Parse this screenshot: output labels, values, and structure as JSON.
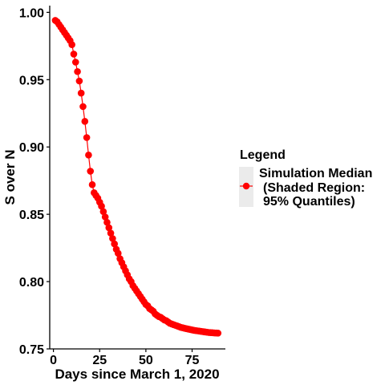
{
  "chart_data": {
    "type": "line",
    "xlabel": "Days since March 1, 2020",
    "ylabel": "S over N",
    "xlim": [
      -2,
      93
    ],
    "ylim": [
      0.75,
      1.005
    ],
    "xticks": [
      0,
      25,
      50,
      75
    ],
    "yticks": [
      0.75,
      0.8,
      0.85,
      0.9,
      0.95,
      1.0
    ],
    "xtick_labels": [
      "0",
      "25",
      "50",
      "75"
    ],
    "ytick_labels": [
      "0.75",
      "0.80",
      "0.85",
      "0.90",
      "0.95",
      "1.00"
    ],
    "grid": false,
    "legend": {
      "title": "Legend",
      "position": "right",
      "entries": [
        {
          "line1": "Simulation Median",
          "line2": "(Shaded Region:",
          "line3": "95% Quantiles)"
        }
      ]
    },
    "series": [
      {
        "color": "#FF0000",
        "marker": "circle",
        "x": [
          1,
          2,
          3,
          4,
          5,
          6,
          7,
          8,
          9,
          10,
          11,
          12,
          13,
          14,
          15,
          16,
          17,
          18,
          19,
          20,
          21,
          22,
          23,
          24,
          25,
          26,
          27,
          28,
          29,
          30,
          31,
          32,
          33,
          34,
          35,
          36,
          37,
          38,
          39,
          40,
          41,
          42,
          43,
          44,
          45,
          46,
          47,
          48,
          49,
          50,
          51,
          52,
          53,
          54,
          55,
          56,
          57,
          58,
          59,
          60,
          61,
          62,
          63,
          64,
          65,
          66,
          67,
          68,
          69,
          70,
          71,
          72,
          73,
          74,
          75,
          76,
          77,
          78,
          79,
          80,
          81,
          82,
          83,
          84,
          85,
          86,
          87,
          88,
          89
        ],
        "y": [
          0.994,
          0.993,
          0.991,
          0.989,
          0.987,
          0.985,
          0.983,
          0.981,
          0.979,
          0.976,
          0.969,
          0.963,
          0.956,
          0.949,
          0.94,
          0.93,
          0.919,
          0.907,
          0.894,
          0.882,
          0.872,
          0.866,
          0.864,
          0.862,
          0.859,
          0.856,
          0.852,
          0.848,
          0.844,
          0.84,
          0.836,
          0.832,
          0.828,
          0.824,
          0.821,
          0.817,
          0.814,
          0.811,
          0.808,
          0.805,
          0.802,
          0.8,
          0.797,
          0.795,
          0.793,
          0.791,
          0.789,
          0.787,
          0.785,
          0.783,
          0.782,
          0.78,
          0.779,
          0.778,
          0.776,
          0.775,
          0.774,
          0.7735,
          0.7725,
          0.7715,
          0.771,
          0.77,
          0.769,
          0.7685,
          0.768,
          0.7675,
          0.767,
          0.7665,
          0.766,
          0.7657,
          0.7653,
          0.765,
          0.7647,
          0.7644,
          0.7641,
          0.7638,
          0.7636,
          0.7634,
          0.7632,
          0.763,
          0.7628,
          0.7626,
          0.7624,
          0.7622,
          0.7621,
          0.762,
          0.7619,
          0.7618,
          0.7617
        ]
      }
    ]
  }
}
